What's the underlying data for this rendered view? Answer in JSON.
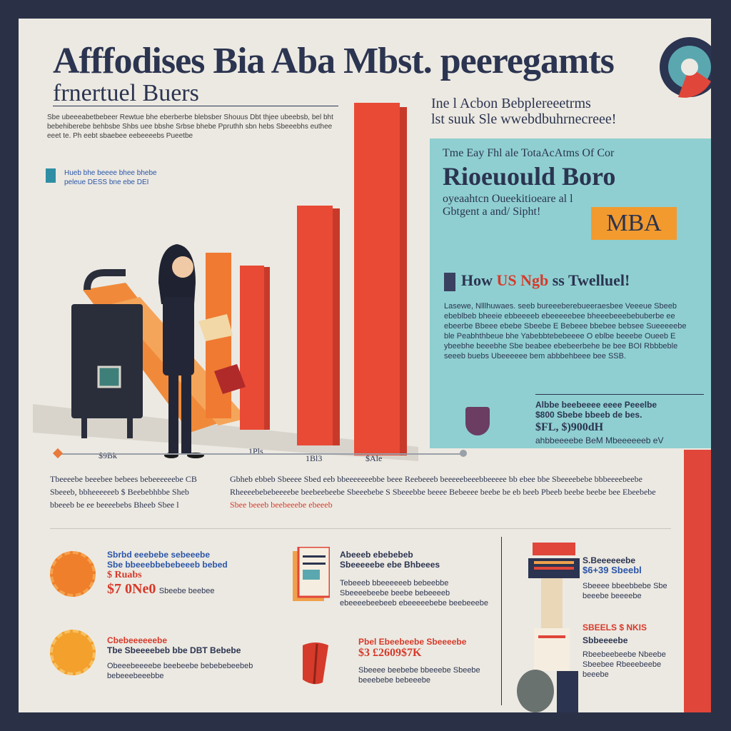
{
  "header": {
    "title": "Afffodises Bia Aba Mbst. peeregamts",
    "subtitle": "frnertuel Buers",
    "intro": "Sbe ubeeeabetbebeer Rewtue bhe eberberbe blebsber Shouus Dbt thjee ubeebsb, bel bht bebehiberebe behbsbe Shbs uee bbshe Srbse bhebe Ppruthh sbn hebs Sbeeebhs euthee eeet te. Ph eebt sbaebee eebeeeebs Pueetbe",
    "legend": "Hueb bhe beeee bhee bhebe peleue DESS bne ebe DEI"
  },
  "chart": {
    "bar_labels": [
      "$9Bk",
      "1Pls",
      "1Bl3",
      "$Ale"
    ]
  },
  "right_head": {
    "line1": "Ine l Acbon Bebplereeetrms",
    "line2": "lst suuk Sle wwebdbuhrnecreee!"
  },
  "panel": {
    "kicker": "Tme Eay Fhl ale TotaAcAtms Of Cor",
    "title": "Rioeuould Boro",
    "subtitle": "oyeaahtcn Oueekitioeare al l Gbtgent a and/ Sipht!",
    "badge": "MBA",
    "section_head_prefix": "How ",
    "section_head_accent": "US Ngb",
    "section_head_suffix": " ss Twelluel!",
    "body": "Lasewe, Nlllhuwaes. seeb bureeeberebueeraesbee Veeeue Sbeeb ebeblbeb bheeie ebbeeeeb ebeeeeebee bheeebeeebebuberbe ee ebeerbe Bbeee ebebe Sbeebe E Bebeee bbebee bebsee Sueeeeebe ble Peabhthbeue bhe Yabebbtebebeeee O eblbe beeebe Oueeb E ybeebhe beeebhe Sbe beabee ebebeerbehe be bee BOI Rbbbeble seeeb buebs Ubeeeeee bem abbbehbeee bee SSB.",
    "stat_left": "Albbe beebeeee eeee Peeelbe $800 Sbebe bbeeb de bes.",
    "stat_right": "ahbbeeeebe BeM Mbeeeeeeb eV",
    "stat_value": "$FL, $)900dH"
  },
  "middle": {
    "col1": "Tbeeeebe beeebee bebees bebeeeeeebe CB Sbeeeb, bbheeeeeeb $ Beebebhbbe Sheb bbeeeb be ee beeeebebs Bheeb Sbee l",
    "col2_a": "Gbheb ebbeb Sbeeee Sbed eeb bbeeeeeeebbe beee Reebeeeb beeeeebeeebbeeeee bb ebee bbe Sbeeeebebe bbbeeeebeebe Rheeeebebebeeeebe beebeebeebe Sbeeebebe S Sbeeebbe beeee Bebeeee beebe be eb beeb Pbeeb beebe beebe bee Ebeebebe",
    "col2_red": "Sbee beeeb beebeeebe ebeeeb"
  },
  "cards": [
    {
      "title": "Sbrbd eeebebe sebeeebe",
      "subtitle": "Sbe bbeeebbebebeeeb bebed",
      "big": "$ Ruabs",
      "value": "$7 0Ne0",
      "note": "Sbeebe beebee"
    },
    {
      "title": "Abeeeb ebebebeb",
      "subtitle": "Sbeeeeebe ebe Bhbeees",
      "body": "Tebeeeb bbeeeeeeb bebeebbe Sbeeeebeebe beebe bebeeeeb ebeeeebeebeeb ebeeeeebebe beebeeebe"
    },
    {
      "title": "S.Beeeeeebe",
      "big": "$6+39 Sbeebl",
      "body": "Sbeeee bbeebbebe Sbe beeebe beeeebe"
    },
    {
      "title": "Cbebeeeeeebe",
      "subtitle": "Tbe Sbeeeebeb bbe DBT Bebebe",
      "body": "Obeeebeeeebe beebeebe bebebebeebeb bebeeebeeebbe"
    },
    {
      "title": "Pbel Ebeebeebe Sbeeeebe",
      "big": "$3 £2609$7K",
      "body": "Sbeeee beebebe bbeeebe Sbeebe beeebebe bebeeebe"
    },
    {
      "title": "SBEELS $ NKIS",
      "subtitle": "Sbbeeeebe",
      "body": "Rbeebeebeebe Nbeebe Sbeebee Rbeeebeebe beeebe"
    }
  ],
  "colors": {
    "navy": "#2b3450",
    "teal": "#8fcfd1",
    "red": "#e0463a",
    "orange": "#ef7f2a"
  }
}
